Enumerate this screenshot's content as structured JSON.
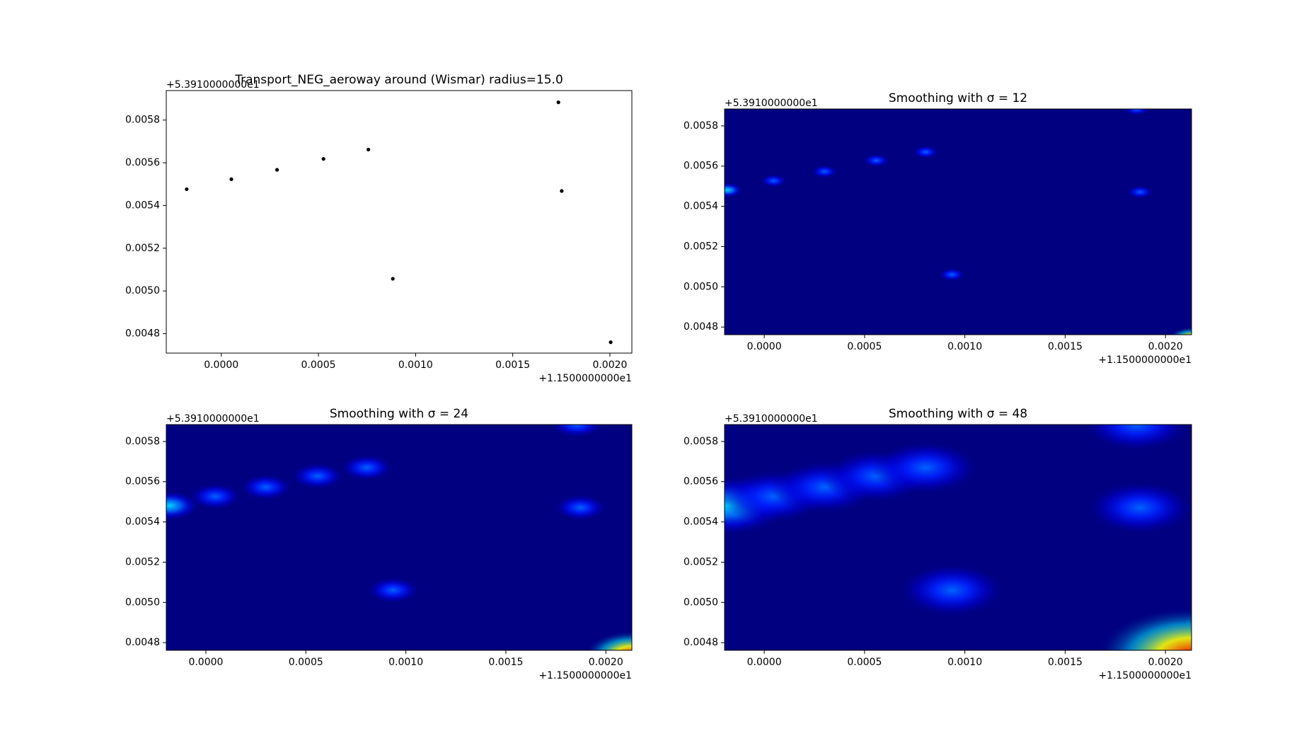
{
  "chart_data": [
    {
      "type": "scatter",
      "title": "Transport_NEG_aeroway around (Wismar) radius=15.0",
      "x": [
        -0.000178,
        5.2e-05,
        0.000287,
        0.000526,
        0.000757,
        0.000883,
        0.001735,
        0.001752,
        0.002004
      ],
      "y": [
        0.005476,
        0.005523,
        0.005567,
        0.005618,
        0.005662,
        0.005057,
        0.005883,
        0.005468,
        0.00476
      ],
      "color": "#000000",
      "xlim": [
        -0.000283,
        0.002113
      ],
      "ylim": [
        0.004709,
        0.005938
      ],
      "xticks": [
        {
          "value": 0,
          "label": "0.0000"
        },
        {
          "value": 0.0005,
          "label": "0.0005"
        },
        {
          "value": 0.001,
          "label": "0.0010"
        },
        {
          "value": 0.0015,
          "label": "0.0015"
        },
        {
          "value": 0.002,
          "label": "0.0020"
        }
      ],
      "yticks": [
        0.0048,
        {
          "value": 0.005,
          "label": "0.0050"
        },
        0.0052,
        0.0054,
        0.0056,
        0.0058
      ],
      "x_offset_label": "+1.1500000000e1",
      "y_offset_label": "+5.3910000000e1"
    },
    {
      "type": "heatmap",
      "title": "Smoothing with  σ = 12",
      "sigma": 12,
      "x": [
        -0.000182,
        4.7e-05,
        0.000301,
        0.000559,
        0.000805,
        0.000936,
        0.001856,
        0.001873,
        0.00213
      ],
      "y": [
        0.005481,
        0.005527,
        0.005573,
        0.005628,
        0.00567,
        0.005061,
        0.005884,
        0.005471,
        0.004741
      ],
      "values": [
        1.5,
        1,
        1,
        1,
        1,
        1,
        1,
        1,
        4
      ],
      "xlim": [
        -0.000198,
        0.00213
      ],
      "ylim": [
        0.004762,
        0.005884
      ],
      "xticks": [
        {
          "value": 0,
          "label": "0.0000"
        },
        {
          "value": 0.0005,
          "label": "0.0005"
        },
        {
          "value": 0.001,
          "label": "0.0010"
        },
        {
          "value": 0.0015,
          "label": "0.0015"
        },
        {
          "value": 0.002,
          "label": "0.0020"
        }
      ],
      "yticks": [
        0.0048,
        {
          "value": 0.005,
          "label": "0.0050"
        },
        0.0052,
        0.0054,
        0.0056,
        0.0058
      ],
      "x_offset_label": "+1.1500000000e1",
      "y_offset_label": "+5.3910000000e1"
    },
    {
      "type": "heatmap",
      "title": "Smoothing with  σ = 24",
      "sigma": 24,
      "x": [
        -0.000182,
        4.7e-05,
        0.000301,
        0.000559,
        0.000805,
        0.000936,
        0.001856,
        0.001873,
        0.00213
      ],
      "y": [
        0.005481,
        0.005527,
        0.005573,
        0.005628,
        0.00567,
        0.005061,
        0.005884,
        0.005471,
        0.004741
      ],
      "values": [
        1.5,
        1,
        1,
        1,
        1,
        1,
        1,
        1,
        4
      ],
      "xlim": [
        -0.000198,
        0.00213
      ],
      "ylim": [
        0.004762,
        0.005884
      ],
      "xticks": [
        {
          "value": 0,
          "label": "0.0000"
        },
        {
          "value": 0.0005,
          "label": "0.0005"
        },
        {
          "value": 0.001,
          "label": "0.0010"
        },
        {
          "value": 0.0015,
          "label": "0.0015"
        },
        {
          "value": 0.002,
          "label": "0.0020"
        }
      ],
      "yticks": [
        0.0048,
        {
          "value": 0.005,
          "label": "0.0050"
        },
        0.0052,
        0.0054,
        0.0056,
        0.0058
      ],
      "x_offset_label": "+1.1500000000e1",
      "y_offset_label": "+5.3910000000e1"
    },
    {
      "type": "heatmap",
      "title": "Smoothing with  σ = 48",
      "sigma": 48,
      "x": [
        -0.000182,
        4.7e-05,
        0.000301,
        0.000559,
        0.000805,
        0.000936,
        0.001856,
        0.001873,
        0.00213
      ],
      "y": [
        0.005481,
        0.005527,
        0.005573,
        0.005628,
        0.00567,
        0.005061,
        0.005884,
        0.005471,
        0.004741
      ],
      "values": [
        1.5,
        1,
        1,
        1,
        1,
        1,
        1,
        1,
        4
      ],
      "xlim": [
        -0.000198,
        0.00213
      ],
      "ylim": [
        0.004762,
        0.005884
      ],
      "xticks": [
        {
          "value": 0,
          "label": "0.0000"
        },
        {
          "value": 0.0005,
          "label": "0.0005"
        },
        {
          "value": 0.001,
          "label": "0.0010"
        },
        {
          "value": 0.0015,
          "label": "0.0015"
        },
        {
          "value": 0.002,
          "label": "0.0020"
        }
      ],
      "yticks": [
        0.0048,
        {
          "value": 0.005,
          "label": "0.0050"
        },
        0.0052,
        0.0054,
        0.0056,
        0.0058
      ],
      "x_offset_label": "+1.1500000000e1",
      "y_offset_label": "+5.3910000000e1"
    }
  ]
}
